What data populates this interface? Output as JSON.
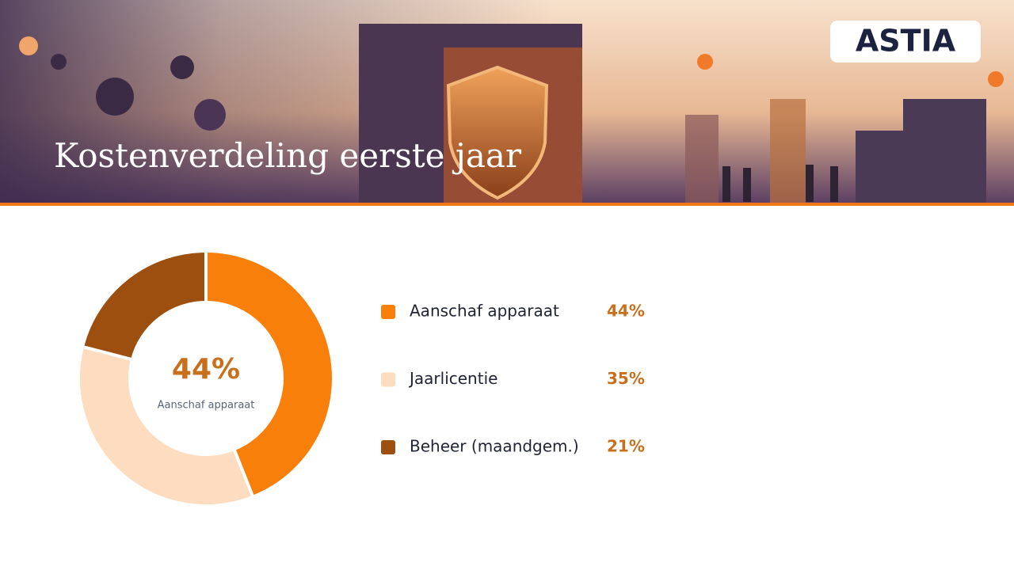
{
  "logo": "ASTIA",
  "chart_data": {
    "type": "pie",
    "title": "Kostenverdeling eerste jaar",
    "categories": [
      "Aanschaf apparaat",
      "Jaarlicentie",
      "Beheer (maandgem.)"
    ],
    "values": [
      44,
      35,
      21
    ],
    "value_labels": [
      "44%",
      "35%",
      "21%"
    ],
    "colors": [
      "#f77f0a",
      "#fddcbf",
      "#9c4f0f"
    ],
    "value_color": "#c86f1c"
  }
}
